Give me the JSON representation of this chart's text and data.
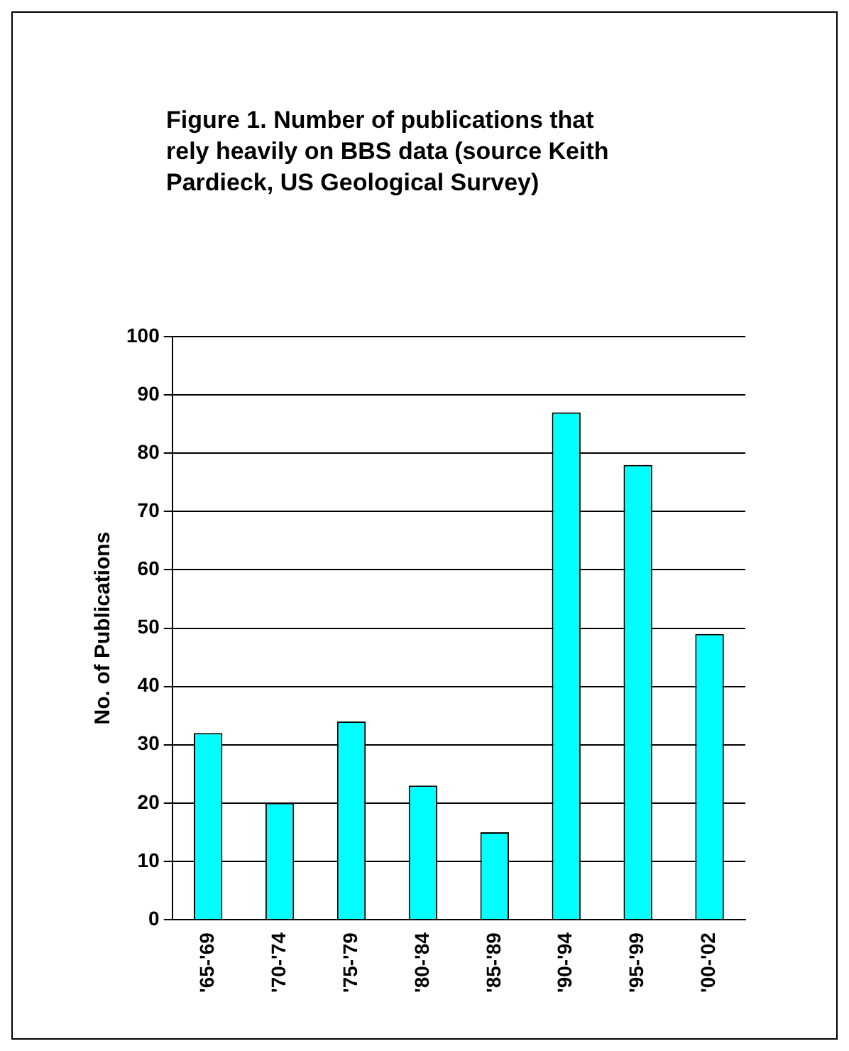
{
  "chart_data": {
    "type": "bar",
    "title": "Figure 1. Number of publications that rely heavily on BBS data (source Keith Pardieck, US Geological Survey)",
    "ylabel": "No. of Publications",
    "categories": [
      "'65-'69",
      "'70-'74",
      "'75-'79",
      "'80-'84",
      "'85-'89",
      "'90-'94",
      "'95-'99",
      "'00-'02"
    ],
    "values": [
      32,
      20,
      34,
      23,
      15,
      87,
      78,
      49
    ],
    "color": "#00ffff",
    "ylim": [
      0,
      100
    ],
    "yticks": [
      0,
      10,
      20,
      30,
      40,
      50,
      60,
      70,
      80,
      90,
      100
    ],
    "grid": "y"
  }
}
